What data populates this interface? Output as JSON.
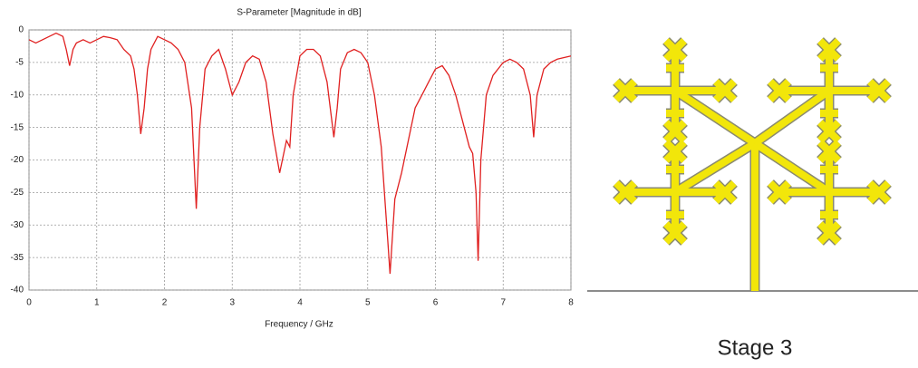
{
  "chart_data": {
    "type": "line",
    "title": "S-Parameter [Magnitude in dB]",
    "x_label": "Frequency / GHz",
    "x": [
      0,
      0.1,
      0.2,
      0.3,
      0.4,
      0.5,
      0.55,
      0.6,
      0.65,
      0.7,
      0.8,
      0.9,
      1.0,
      1.1,
      1.2,
      1.3,
      1.4,
      1.5,
      1.55,
      1.6,
      1.65,
      1.7,
      1.75,
      1.8,
      1.9,
      2.0,
      2.1,
      2.2,
      2.3,
      2.4,
      2.47,
      2.52,
      2.6,
      2.7,
      2.8,
      2.9,
      3.0,
      3.1,
      3.2,
      3.3,
      3.4,
      3.5,
      3.6,
      3.7,
      3.8,
      3.85,
      3.9,
      4.0,
      4.1,
      4.2,
      4.3,
      4.4,
      4.5,
      4.55,
      4.6,
      4.7,
      4.8,
      4.9,
      5.0,
      5.1,
      5.2,
      5.3,
      5.33,
      5.4,
      5.5,
      5.6,
      5.7,
      5.8,
      5.9,
      6.0,
      6.1,
      6.2,
      6.3,
      6.4,
      6.5,
      6.55,
      6.6,
      6.63,
      6.67,
      6.75,
      6.85,
      7.0,
      7.1,
      7.2,
      7.3,
      7.4,
      7.45,
      7.5,
      7.6,
      7.7,
      7.8,
      8.0
    ],
    "values": [
      -1.5,
      -2,
      -1.5,
      -1,
      -0.5,
      -1,
      -3,
      -5.5,
      -3,
      -2,
      -1.5,
      -2,
      -1.5,
      -1,
      -1.2,
      -1.5,
      -3,
      -4,
      -6,
      -10,
      -16,
      -12,
      -6,
      -3,
      -1,
      -1.5,
      -2,
      -3,
      -5,
      -12,
      -27.5,
      -15,
      -6,
      -4,
      -3,
      -6,
      -10,
      -8,
      -5,
      -4,
      -4.5,
      -8,
      -16,
      -22,
      -17,
      -18,
      -10,
      -4,
      -3,
      -3,
      -4,
      -8,
      -16.5,
      -12,
      -6,
      -3.5,
      -3,
      -3.5,
      -5,
      -10,
      -18,
      -33,
      -37.5,
      -26,
      -22,
      -17,
      -12,
      -10,
      -8,
      -6,
      -5.5,
      -7,
      -10,
      -14,
      -18,
      -19,
      -25,
      -35.5,
      -20,
      -10,
      -7,
      -5,
      -4.5,
      -5,
      -6,
      -10,
      -16.5,
      -10,
      -6,
      -5,
      -4.5,
      -4
    ],
    "color": "#e02020",
    "xlim": [
      0,
      8
    ],
    "xticks": [
      0,
      1,
      2,
      3,
      4,
      5,
      6,
      7,
      8
    ],
    "ylim": [
      -40,
      0
    ],
    "yticks": [
      0,
      -5,
      -10,
      -15,
      -20,
      -25,
      -30,
      -35,
      -40
    ],
    "grid": true
  },
  "diagram": {
    "caption": "Stage 3"
  }
}
